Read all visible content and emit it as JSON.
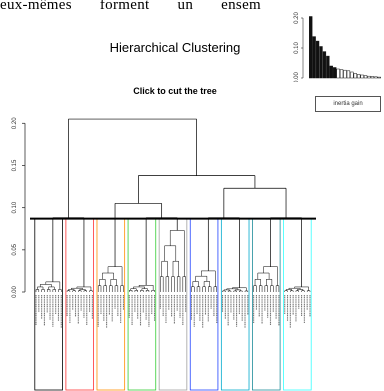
{
  "page": {
    "top_text": "eux-mêmes forment un ensem",
    "inertia_legend": "inertia gain"
  },
  "chart_data": [
    {
      "type": "dendrogram",
      "title": "Hierarchical Clustering",
      "subtitle": "Click to cut the tree",
      "ylim": [
        0,
        0.23
      ],
      "yticks": [
        0.0,
        0.05,
        0.1,
        0.15,
        0.2
      ],
      "ytick_labels": [
        "0.00",
        "0.05",
        "0.10",
        "0.15",
        "0.20"
      ],
      "cut_height": 0.087,
      "grid": false,
      "tree": {
        "h": 0.205,
        "children": [
          {
            "h": 0.088,
            "children": [
              {
                "h": 0.012,
                "color": "#000000",
                "children": []
              },
              {
                "h": 0.006,
                "color": "#ff3333",
                "children": []
              }
            ]
          },
          {
            "h": 0.138,
            "children": [
              {
                "h": 0.105,
                "children": [
                  {
                    "h": 0.03,
                    "color": "#ff8f00",
                    "children": []
                  },
                  {
                    "h": 0.088,
                    "children": [
                      {
                        "h": 0.008,
                        "color": "#33cc33",
                        "children": []
                      },
                      {
                        "h": 0.073,
                        "color": "#a0a0a0",
                        "children": []
                      }
                    ]
                  }
                ]
              },
              {
                "h": 0.123,
                "children": [
                  {
                    "h": 0.088,
                    "children": [
                      {
                        "h": 0.025,
                        "color": "#2244ff",
                        "children": []
                      },
                      {
                        "h": 0.005,
                        "color": "#00aacc",
                        "children": []
                      }
                    ]
                  },
                  {
                    "h": 0.088,
                    "children": [
                      {
                        "h": 0.03,
                        "color": "#1d8c99",
                        "children": []
                      },
                      {
                        "h": 0.006,
                        "color": "#33ffff",
                        "children": []
                      }
                    ]
                  }
                ]
              }
            ]
          }
        ]
      }
    },
    {
      "type": "bar",
      "ylim": [
        0,
        0.22
      ],
      "yticks": [
        0.0,
        0.1,
        0.2
      ],
      "ytick_labels": [
        "0.00",
        "0.10",
        "0.20"
      ],
      "values": [
        0.205,
        0.138,
        0.123,
        0.105,
        0.088,
        0.073,
        0.04,
        0.035,
        0.03,
        0.028,
        0.026,
        0.024,
        0.02,
        0.015,
        0.012,
        0.01,
        0.008,
        0.006,
        0.005,
        0.004,
        0.003
      ],
      "highlighted_count": 8,
      "legend": [
        "inertia gain"
      ]
    }
  ]
}
